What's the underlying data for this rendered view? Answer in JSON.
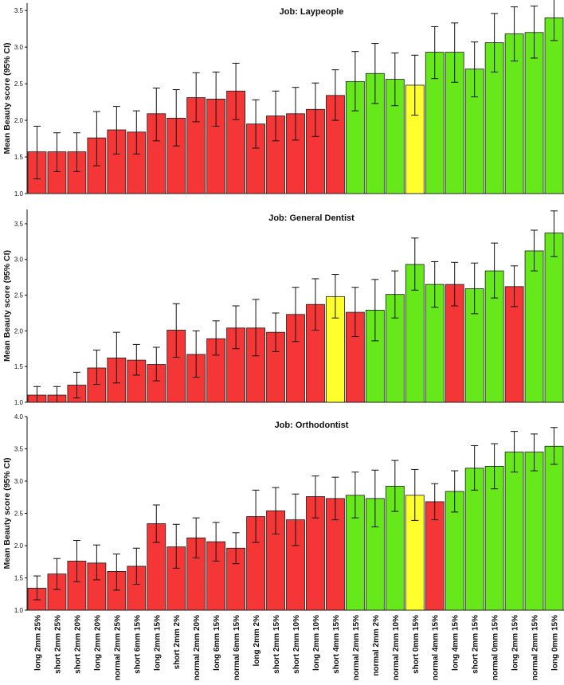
{
  "colors": {
    "red": "#f53636",
    "green": "#66e81a",
    "yellow": "#ffff2e",
    "bar_edge": "#1a1a1a",
    "errorbar": "#111111"
  },
  "chart_data": [
    {
      "type": "bar",
      "title": "Job: Laypeople",
      "ylabel": "Mean Beauty score (95% CI)",
      "ylim": [
        1.0,
        3.6
      ],
      "yticks": [
        "1.0",
        "1.5",
        "2.0",
        "2.5",
        "3.0",
        "3.5"
      ],
      "categories": [
        "long 2mm 25%",
        "short 2mm 25%",
        "short 2mm 20%",
        "long 2mm 20%",
        "normal 2mm 25%",
        "short 6mm 15%",
        "long 2mm 15%",
        "short 2mm 2%",
        "normal 2mm 20%",
        "long 6mm 15%",
        "normal 6mm 15%",
        "long 2mm 2%",
        "short 2mm 15%",
        "short 2mm 10%",
        "long 2mm 10%",
        "short 4mm 15%",
        "normal 2mm 15%",
        "normal 2mm 2%",
        "normal 2mm 10%",
        "short 0mm 15%",
        "normal 4mm 15%",
        "long 4mm 15%",
        "short 2mm 15%",
        "normal 0mm 15%",
        "long 2mm 15%",
        "normal 2mm 15%",
        "long 0mm 15%"
      ],
      "values": [
        1.57,
        1.57,
        1.57,
        1.76,
        1.87,
        1.84,
        2.09,
        2.03,
        2.31,
        2.29,
        2.4,
        1.95,
        2.06,
        2.09,
        2.15,
        2.34,
        2.53,
        2.64,
        2.56,
        2.48,
        2.93,
        2.93,
        2.7,
        3.06,
        3.18,
        3.2,
        3.4
      ],
      "ci_low": [
        1.2,
        1.3,
        1.3,
        1.38,
        1.54,
        1.54,
        1.72,
        1.65,
        1.98,
        1.92,
        2.01,
        1.62,
        1.72,
        1.73,
        1.78,
        2.0,
        2.13,
        2.23,
        2.2,
        2.07,
        2.57,
        2.52,
        2.32,
        2.66,
        2.81,
        2.85,
        3.09
      ],
      "ci_high": [
        1.92,
        1.83,
        1.83,
        2.12,
        2.19,
        2.13,
        2.44,
        2.42,
        2.65,
        2.66,
        2.78,
        2.28,
        2.4,
        2.45,
        2.51,
        2.69,
        2.94,
        3.05,
        2.92,
        2.89,
        3.28,
        3.33,
        3.07,
        3.46,
        3.55,
        3.56,
        3.68
      ],
      "colors": [
        "red",
        "red",
        "red",
        "red",
        "red",
        "red",
        "red",
        "red",
        "red",
        "red",
        "red",
        "red",
        "red",
        "red",
        "red",
        "red",
        "green",
        "green",
        "green",
        "yellow",
        "green",
        "green",
        "green",
        "green",
        "green",
        "green",
        "green"
      ]
    },
    {
      "type": "bar",
      "title": "Job: General Dentist",
      "ylabel": "Mean Beauty score (95% CI)",
      "ylim": [
        1.0,
        3.7
      ],
      "yticks": [
        "1.0",
        "1.5",
        "2.0",
        "2.5",
        "3.0",
        "3.5"
      ],
      "categories": [
        "long 2mm 25%",
        "short 2mm 25%",
        "short 2mm 20%",
        "long 2mm 20%",
        "normal 2mm 25%",
        "short 6mm 15%",
        "long 2mm 15%",
        "short 2mm 2%",
        "normal 2mm 20%",
        "long 6mm 15%",
        "normal 6mm 15%",
        "long 2mm 2%",
        "short 2mm 15%",
        "short 2mm 10%",
        "long 2mm 10%",
        "short 4mm 15%",
        "normal 2mm 15%",
        "normal 2mm 2%",
        "normal 2mm 10%",
        "short 0mm 15%",
        "normal 4mm 15%",
        "long 4mm 15%",
        "short 2mm 15%",
        "normal 0mm 15%",
        "long 2mm 15%",
        "normal 2mm 15%",
        "long 0mm 15%"
      ],
      "values": [
        1.1,
        1.1,
        1.24,
        1.48,
        1.62,
        1.59,
        1.53,
        2.01,
        1.67,
        1.89,
        2.04,
        2.04,
        1.98,
        2.23,
        2.37,
        2.48,
        2.26,
        2.29,
        2.51,
        2.93,
        2.65,
        2.65,
        2.59,
        2.84,
        2.62,
        3.12,
        3.37
      ],
      "ci_low": [
        0.98,
        0.98,
        1.06,
        1.25,
        1.27,
        1.38,
        1.3,
        1.63,
        1.35,
        1.66,
        1.75,
        1.65,
        1.71,
        1.85,
        2.01,
        2.18,
        1.92,
        1.86,
        2.18,
        2.57,
        2.33,
        2.35,
        2.24,
        2.46,
        2.34,
        2.84,
        3.04
      ],
      "ci_high": [
        1.22,
        1.22,
        1.42,
        1.73,
        1.98,
        1.81,
        1.77,
        2.38,
        2.0,
        2.14,
        2.35,
        2.44,
        2.25,
        2.61,
        2.73,
        2.79,
        2.61,
        2.72,
        2.84,
        3.3,
        2.97,
        2.96,
        2.95,
        3.23,
        2.91,
        3.41,
        3.68
      ],
      "colors": [
        "red",
        "red",
        "red",
        "red",
        "red",
        "red",
        "red",
        "red",
        "red",
        "red",
        "red",
        "red",
        "red",
        "red",
        "red",
        "yellow",
        "red",
        "green",
        "green",
        "green",
        "green",
        "red",
        "green",
        "green",
        "red",
        "green",
        "green"
      ]
    },
    {
      "type": "bar",
      "title": "Job: Orthodontist",
      "ylabel": "Mean Beauty score (95% CI)",
      "ylim": [
        1.0,
        4.0
      ],
      "yticks": [
        "1.0",
        "1.5",
        "2.0",
        "2.5",
        "3.0",
        "3.5",
        "4.0"
      ],
      "categories": [
        "long 2mm 25%",
        "short 2mm 25%",
        "short 2mm 20%",
        "long 2mm 20%",
        "normal 2mm 25%",
        "short 6mm 15%",
        "long 2mm 15%",
        "short 2mm 2%",
        "normal 2mm 20%",
        "long 6mm 15%",
        "normal 6mm 15%",
        "long 2mm 2%",
        "short 2mm 15%",
        "short 2mm 10%",
        "long 2mm 10%",
        "short 4mm 15%",
        "normal 2mm 15%",
        "normal 2mm 2%",
        "normal 2mm 10%",
        "short 0mm 15%",
        "normal 4mm 15%",
        "long 4mm 15%",
        "short 2mm 15%",
        "normal 0mm 15%",
        "long 2mm 15%",
        "normal 2mm 15%",
        "long 0mm 15%"
      ],
      "values": [
        1.34,
        1.56,
        1.76,
        1.73,
        1.6,
        1.68,
        2.34,
        1.98,
        2.12,
        2.06,
        1.96,
        2.45,
        2.54,
        2.4,
        2.76,
        2.73,
        2.78,
        2.73,
        2.92,
        2.78,
        2.68,
        2.84,
        3.2,
        3.23,
        3.45,
        3.45,
        3.54
      ],
      "ci_low": [
        1.16,
        1.32,
        1.44,
        1.47,
        1.31,
        1.4,
        2.05,
        1.65,
        1.81,
        1.76,
        1.72,
        2.05,
        2.18,
        2.0,
        2.43,
        2.4,
        2.43,
        2.29,
        2.53,
        2.39,
        2.4,
        2.52,
        2.86,
        2.88,
        3.14,
        3.16,
        3.26
      ],
      "ci_high": [
        1.53,
        1.8,
        2.08,
        2.01,
        1.87,
        1.96,
        2.63,
        2.33,
        2.43,
        2.36,
        2.2,
        2.86,
        2.9,
        2.8,
        3.08,
        3.06,
        3.14,
        3.17,
        3.32,
        3.18,
        2.96,
        3.16,
        3.55,
        3.58,
        3.77,
        3.73,
        3.83
      ],
      "colors": [
        "red",
        "red",
        "red",
        "red",
        "red",
        "red",
        "red",
        "red",
        "red",
        "red",
        "red",
        "red",
        "red",
        "red",
        "red",
        "red",
        "green",
        "green",
        "green",
        "yellow",
        "red",
        "green",
        "green",
        "green",
        "green",
        "green",
        "green"
      ]
    }
  ]
}
